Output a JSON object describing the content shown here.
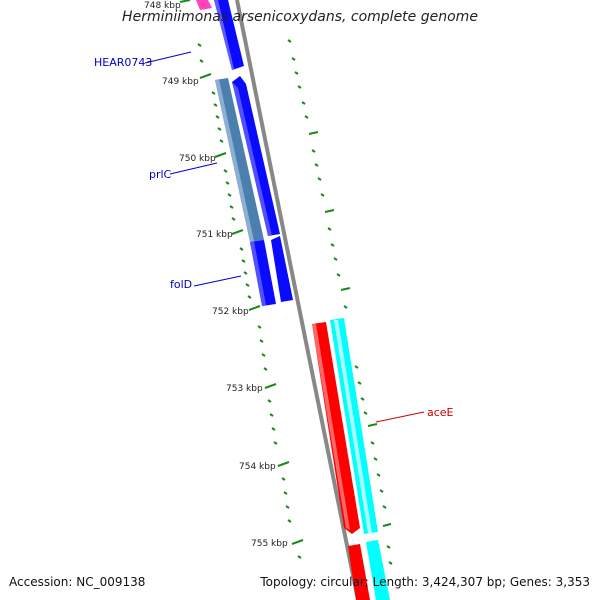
{
  "title": "Herminiimonas arsenicoxydans, complete genome",
  "accession_text": "Accession: NC_009138",
  "summary_text": "Topology: circular; Length: 3,424,307 bp; Genes: 3,353",
  "colors": {
    "backbone": "#888888",
    "tick": "#1a8a1a",
    "gene_blue": "#0a0aff",
    "gene_steel": "#4a7fae",
    "gene_red": "#ff0000",
    "gene_cyan": "#00ffff",
    "gene_pink": "#ff44bb",
    "label_blue": "#0000cc",
    "label_red": "#cc0000",
    "scale_text": "#222222"
  },
  "scale_labels": [
    "748 kbp",
    "749 kbp",
    "750 kbp",
    "751 kbp",
    "752 kbp",
    "753 kbp",
    "754 kbp",
    "755 kbp"
  ],
  "gene_labels": [
    {
      "name": "HEAR0743",
      "color_key": "label_blue"
    },
    {
      "name": "prlC",
      "color_key": "label_blue"
    },
    {
      "name": "folD",
      "color_key": "label_blue"
    },
    {
      "name": "aceE",
      "color_key": "label_red"
    }
  ]
}
